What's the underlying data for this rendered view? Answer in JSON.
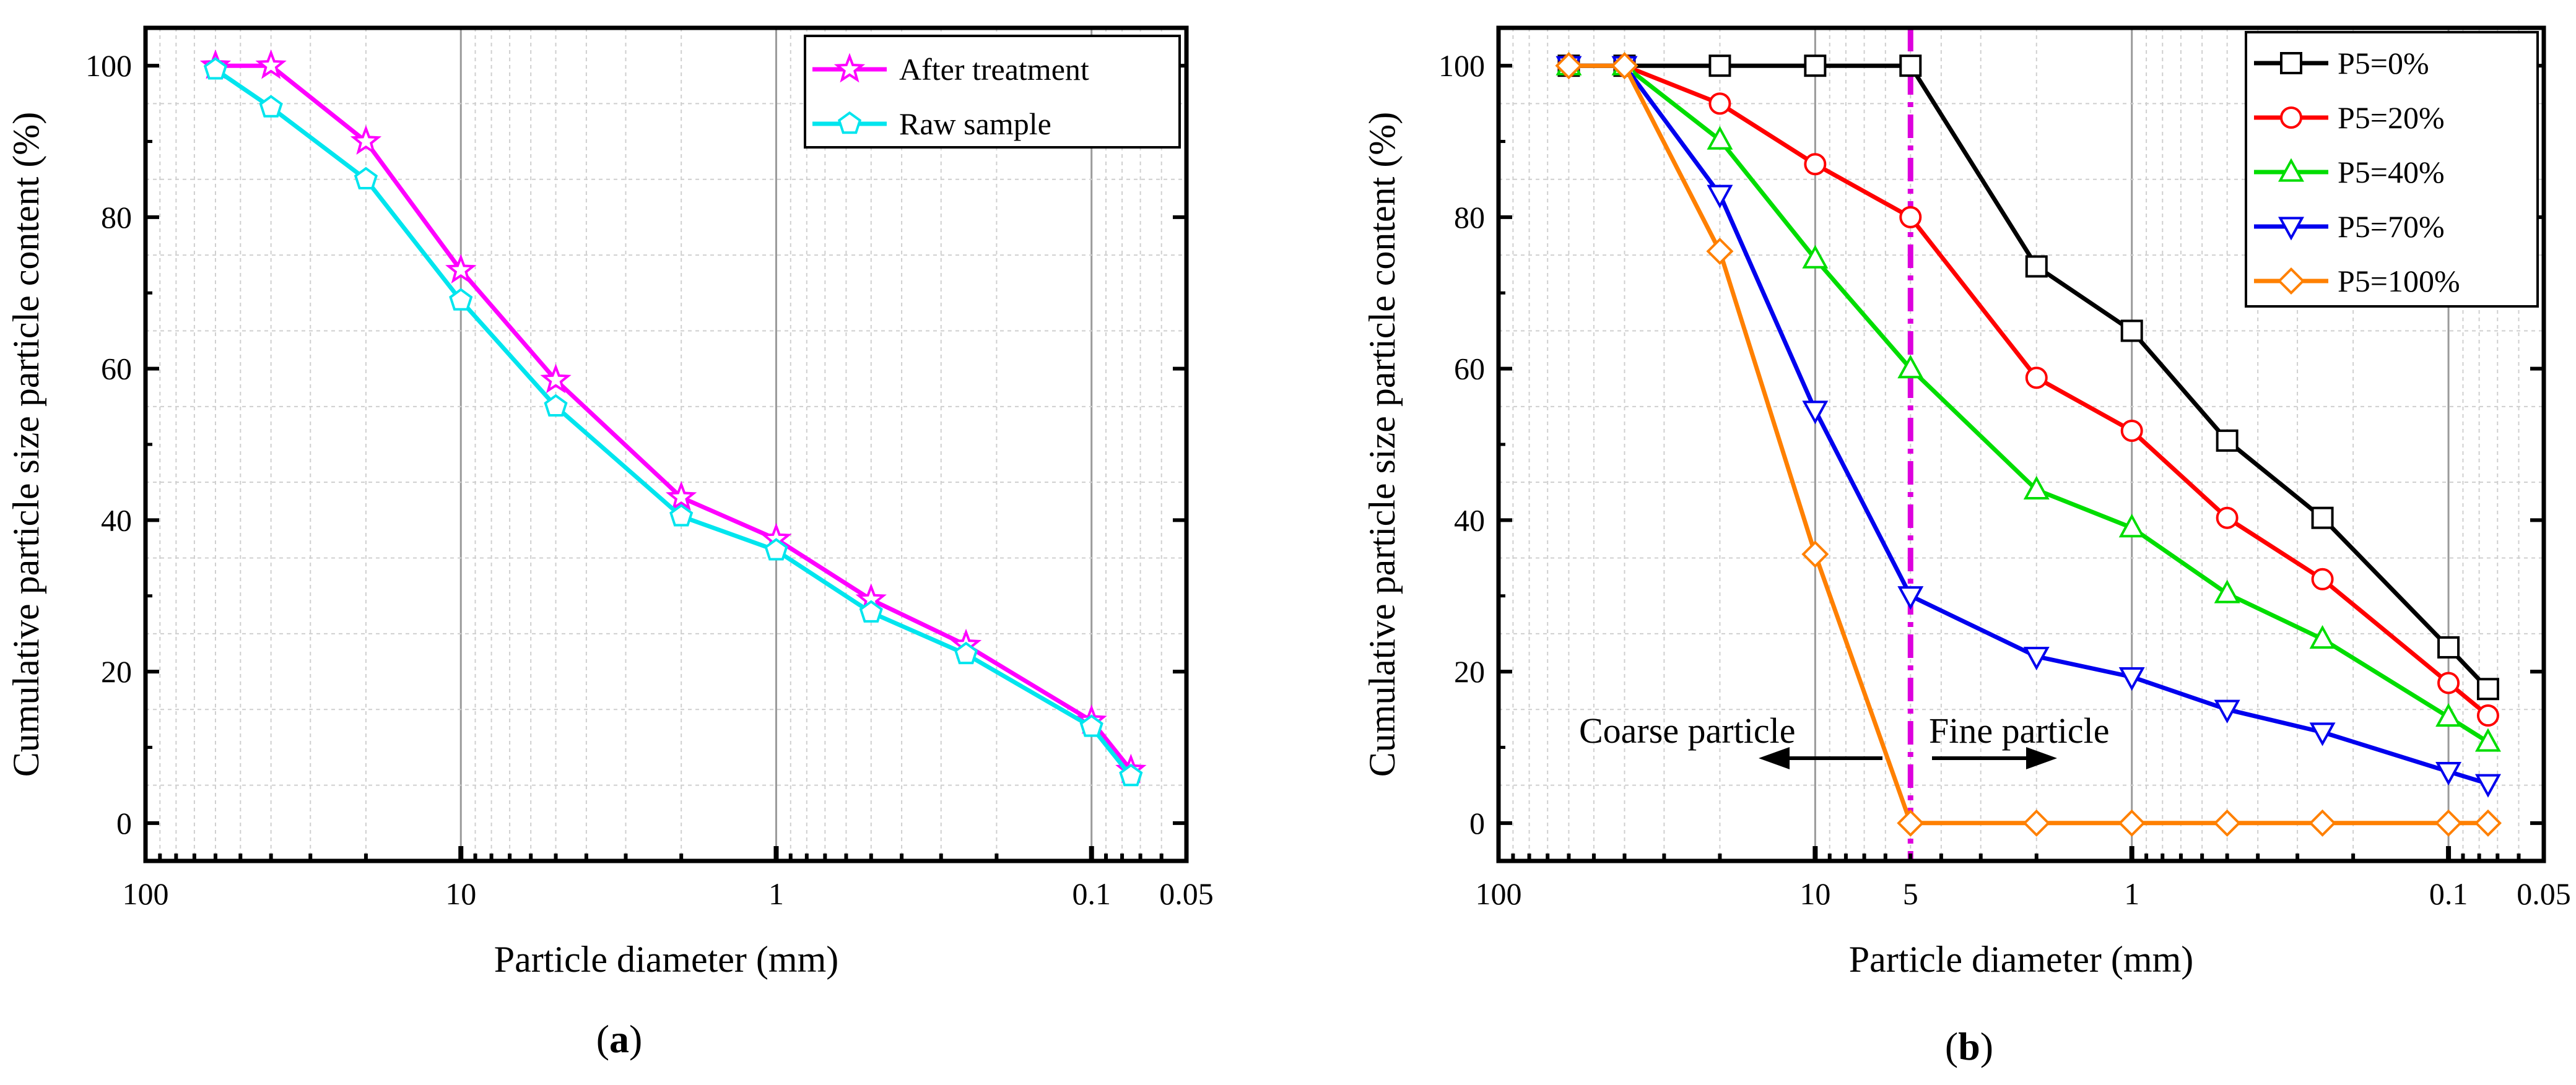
{
  "chart_data": [
    {
      "panel": "a",
      "type": "line",
      "panel_label_prefix": "(",
      "panel_label_letter": "a",
      "panel_label_suffix": ")",
      "xlabel": "Particle diameter (mm)",
      "ylabel": "Cumulative particle size particle content (%)",
      "xscale": "log",
      "xlim": [
        100,
        0.05
      ],
      "ylim": [
        -5,
        105
      ],
      "x_ticks": [
        {
          "value": 100,
          "label": "100"
        },
        {
          "value": 10,
          "label": "10"
        },
        {
          "value": 1,
          "label": "1"
        },
        {
          "value": 0.1,
          "label": "0.1"
        },
        {
          "value": 0.05,
          "label": "0.05"
        }
      ],
      "y_ticks": [
        0,
        20,
        40,
        60,
        80,
        100
      ],
      "y_tick_labels": [
        "0",
        "20",
        "40",
        "60",
        "80",
        "100"
      ],
      "grid": true,
      "legend_position": "top-right",
      "x": [
        60,
        40,
        20,
        10,
        5,
        2,
        1,
        0.5,
        0.25,
        0.1,
        0.075
      ],
      "series": [
        {
          "name": "After treatment",
          "marker": "star",
          "color": "#ff00ff",
          "values": [
            100,
            100,
            90,
            73,
            58.5,
            43,
            37.5,
            29.5,
            23.5,
            13.5,
            7
          ]
        },
        {
          "name": "Raw sample",
          "marker": "pentagon",
          "color": "#00e5ee",
          "values": [
            99.5,
            94.5,
            85,
            69,
            55,
            40.5,
            36,
            27.8,
            22.3,
            12.7,
            6.2
          ]
        }
      ]
    },
    {
      "panel": "b",
      "type": "line",
      "panel_label_prefix": "(",
      "panel_label_letter": "b",
      "panel_label_suffix": ")",
      "xlabel": "Particle diameter (mm)",
      "ylabel": "Cumulative particle size particle content (%)",
      "xscale": "log",
      "xlim": [
        100,
        0.05
      ],
      "ylim": [
        -5,
        105
      ],
      "x_ticks": [
        {
          "value": 100,
          "label": "100"
        },
        {
          "value": 10,
          "label": "10"
        },
        {
          "value": 5,
          "label": "5"
        },
        {
          "value": 1,
          "label": "1"
        },
        {
          "value": 0.1,
          "label": "0.1"
        },
        {
          "value": 0.05,
          "label": "0.05"
        }
      ],
      "y_ticks": [
        0,
        20,
        40,
        60,
        80,
        100
      ],
      "y_tick_labels": [
        "0",
        "20",
        "40",
        "60",
        "80",
        "100"
      ],
      "grid": true,
      "legend_position": "top-right",
      "x": [
        60,
        40,
        20,
        10,
        5,
        2,
        1,
        0.5,
        0.25,
        0.1,
        0.075
      ],
      "series": [
        {
          "name": "P5=0%",
          "marker": "square",
          "color": "#000000",
          "values": [
            100,
            100,
            100,
            100,
            100,
            73.5,
            65,
            50.5,
            40.3,
            23.2,
            17.7
          ]
        },
        {
          "name": "P5=20%",
          "marker": "circle",
          "color": "#ff0000",
          "values": [
            100,
            100,
            95,
            87,
            80,
            58.8,
            51.8,
            40.3,
            32.2,
            18.5,
            14.2
          ]
        },
        {
          "name": "P5=40%",
          "marker": "triangle-up",
          "color": "#00dd00",
          "values": [
            100,
            100,
            90.2,
            74.5,
            60,
            44,
            39,
            30.3,
            24.3,
            14,
            10.7
          ]
        },
        {
          "name": "P5=70%",
          "marker": "triangle-down",
          "color": "#0000ee",
          "values": [
            100,
            100,
            83,
            54.5,
            30,
            22,
            19.3,
            15,
            12,
            6.8,
            5.2
          ]
        },
        {
          "name": "P5=100%",
          "marker": "diamond",
          "color": "#ff8000",
          "values": [
            100,
            100,
            75.5,
            35.5,
            0,
            0,
            0,
            0,
            0,
            0,
            0
          ]
        }
      ],
      "reference_line": {
        "x": 5,
        "color": "#dd00dd",
        "style": "dash-dot"
      },
      "annotations": {
        "coarse": "Coarse particle",
        "fine": "Fine particle"
      }
    }
  ]
}
